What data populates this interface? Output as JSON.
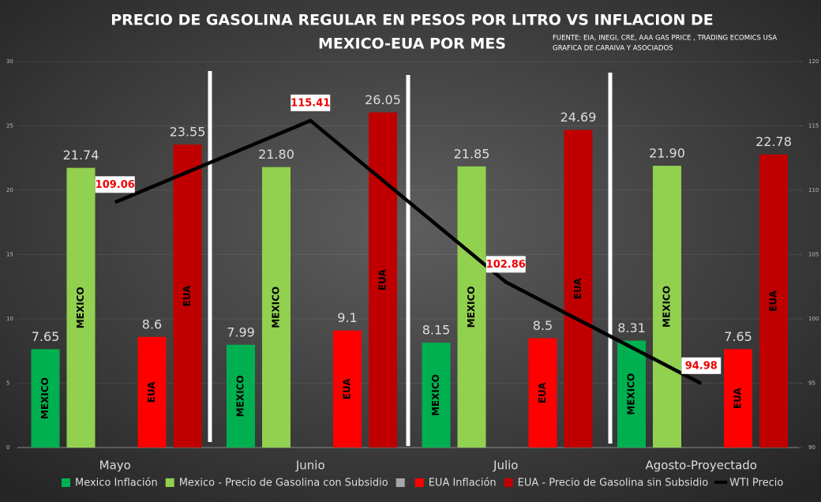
{
  "chart_data": {
    "type": "bar",
    "title": [
      "PRECIO DE GASOLINA REGULAR EN PESOS POR LITRO VS INFLACION DE",
      "MEXICO-EUA POR MES"
    ],
    "source": [
      "FUENTE: EIA, INEGI, CRE, AAA GAS PRICE , TRADING ECOMICS USA",
      "GRAFICA DE CARAIVA Y ASOCIADOS"
    ],
    "categories": [
      "Mayo",
      "Junio",
      "Julio",
      "Agosto-Proyectado"
    ],
    "series": [
      {
        "name": "Mexico Inflación",
        "color": "#00b050",
        "bar_label": "MEXICO",
        "values": [
          7.65,
          7.99,
          8.15,
          8.31
        ]
      },
      {
        "name": "Mexico - Precio de Gasolina con Subsidio",
        "color": "#92d050",
        "bar_label": "MEXICO",
        "values": [
          21.74,
          21.8,
          21.85,
          21.9
        ],
        "value_labels": [
          "21.74",
          "21.80",
          "21.85",
          "21.90"
        ]
      },
      {
        "name": "EUA Inflación",
        "color": "#ff0000",
        "bar_label": "EUA",
        "values": [
          8.6,
          9.1,
          8.5,
          7.65
        ]
      },
      {
        "name": "EUA - Precio de Gasolina sin Subsidio",
        "color": "#c00000",
        "bar_label": "EUA",
        "values": [
          23.55,
          26.05,
          24.69,
          22.78
        ]
      },
      {
        "name": "WTI Precio",
        "type": "line",
        "axis": "y2",
        "color": "#000000",
        "values": [
          109.06,
          115.41,
          102.86,
          94.98
        ]
      }
    ],
    "ylim": [
      0,
      30
    ],
    "yticks": [
      0,
      5,
      10,
      15,
      20,
      25,
      30
    ],
    "y2lim": [
      90,
      120
    ],
    "y2ticks": [
      90,
      95,
      100,
      105,
      110,
      115,
      120
    ],
    "grid": true
  }
}
